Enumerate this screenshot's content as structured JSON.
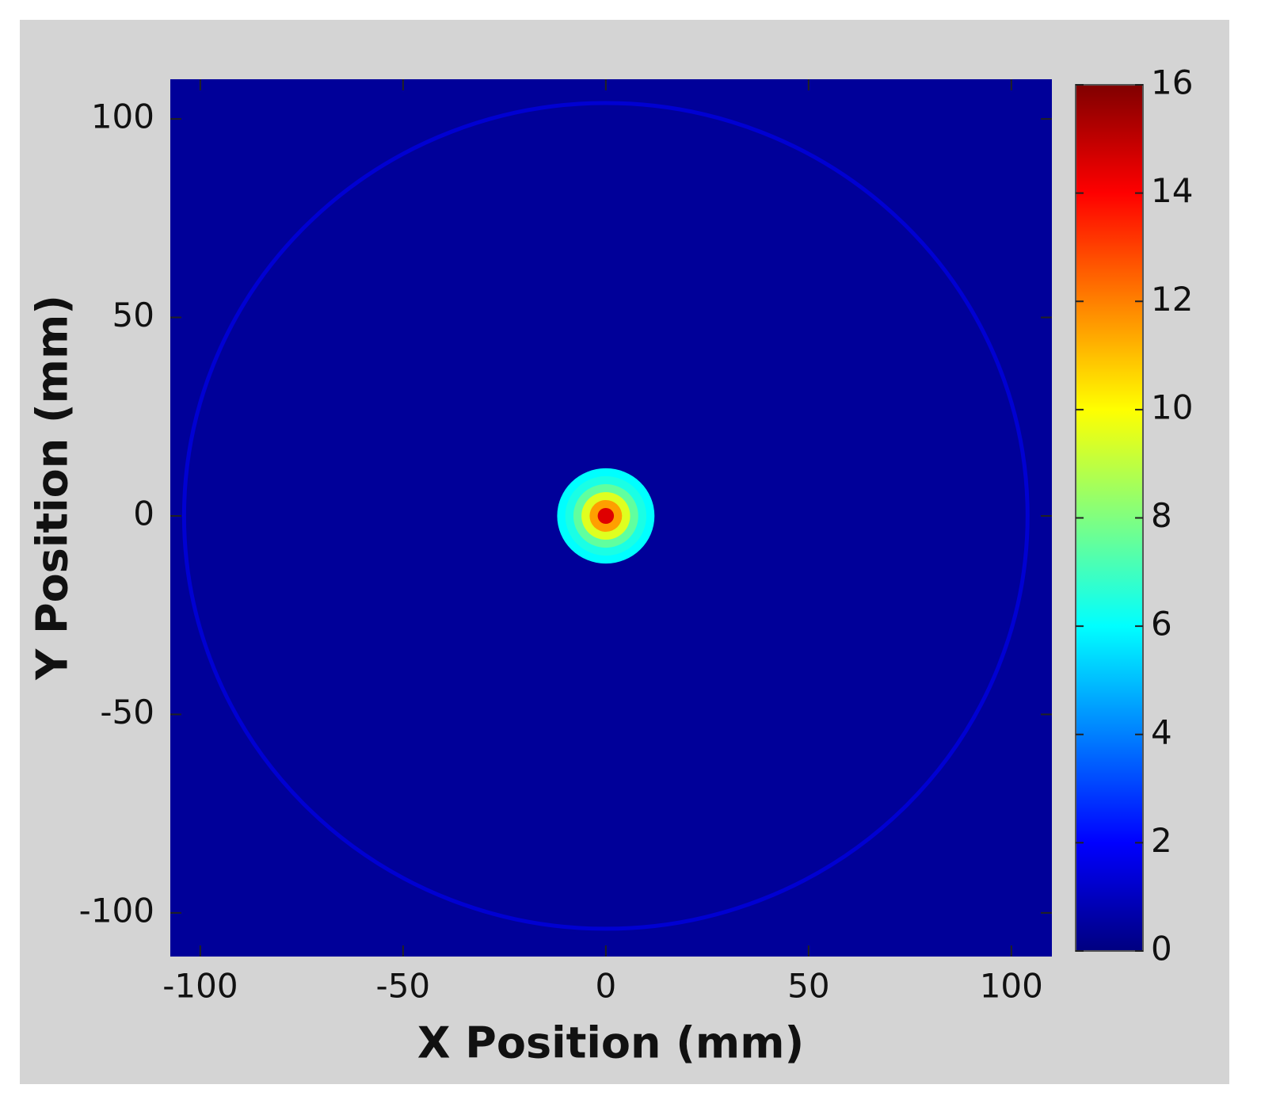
{
  "chart_data": {
    "type": "heatmap",
    "colormap": "jet",
    "xlabel": "X Position (mm)",
    "ylabel": "Y Position (mm)",
    "xlim": [
      -107.4,
      110
    ],
    "ylim": [
      -111,
      110
    ],
    "xticks": [
      -100,
      -50,
      0,
      50,
      100
    ],
    "yticks": [
      -100,
      -50,
      0,
      50,
      100
    ],
    "clim": [
      0,
      16
    ],
    "cticks": [
      0,
      2,
      4,
      6,
      8,
      10,
      12,
      14,
      16
    ],
    "background": 0.4,
    "radial_profile": {
      "r": [
        12,
        10,
        8,
        6,
        4,
        2
      ],
      "values": [
        6,
        6.4,
        7.5,
        9.5,
        11.5,
        14.5
      ]
    },
    "ring": {
      "r": 104,
      "value": 1.3
    }
  }
}
